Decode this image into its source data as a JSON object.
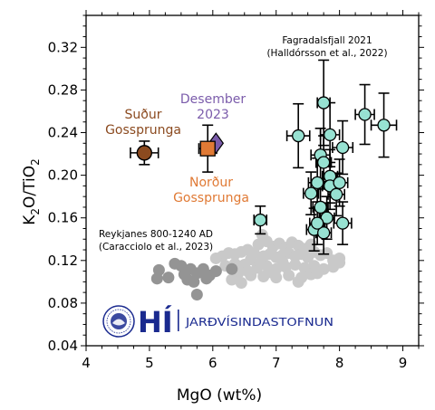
{
  "chart_data": {
    "type": "scatter",
    "xlabel": "MgO (wt%)",
    "ylabel_main": "K",
    "ylabel_sub": "2",
    "ylabel_rest": "O/TiO",
    "ylabel_sub2": "2",
    "xlim": [
      4,
      9.25
    ],
    "ylim": [
      0.04,
      0.35
    ],
    "xticks": [
      4,
      5,
      6,
      7,
      8,
      9
    ],
    "yticks": [
      0.04,
      0.08,
      0.12,
      0.16,
      0.2,
      0.24,
      0.28,
      0.32
    ],
    "grid": false,
    "colors": {
      "fagradalsfjall": "#97e2d2",
      "sudur": "#8b4a1f",
      "nordur": "#e07a35",
      "desember": "#7b5cab",
      "reykjanes_light": "#c9c9c9",
      "reykjanes_dark": "#949494",
      "logo": "#1a2a8f"
    },
    "annotations": {
      "fagradalsfjall_1": "Fagradalsfjall 2021",
      "fagradalsfjall_2": "(Halldórsson et al., 2022)",
      "reykjanes_1": "Reykjanes 800-1240 AD",
      "reykjanes_2": "(Caracciolo et al., 2023)",
      "sudur_1": "Suður",
      "sudur_2": "Gossprunga",
      "nordur_1": "Norður",
      "nordur_2": "Gossprunga",
      "desember_1": "Desember",
      "desember_2": "2023"
    },
    "series": [
      {
        "name": "Fagradalsfjall 2021",
        "points": [
          {
            "x": 6.75,
            "y": 0.158,
            "xerr": 0.1,
            "yerr": 0.013
          },
          {
            "x": 7.75,
            "y": 0.268,
            "xerr": 0.1,
            "yerr": 0.04
          },
          {
            "x": 7.35,
            "y": 0.237,
            "xerr": 0.18,
            "yerr": 0.03
          },
          {
            "x": 7.7,
            "y": 0.219,
            "xerr": 0.15,
            "yerr": 0.025
          },
          {
            "x": 7.85,
            "y": 0.238,
            "xerr": 0.15,
            "yerr": 0.03
          },
          {
            "x": 8.05,
            "y": 0.226,
            "xerr": 0.16,
            "yerr": 0.025
          },
          {
            "x": 8.4,
            "y": 0.257,
            "xerr": 0.15,
            "yerr": 0.028
          },
          {
            "x": 8.7,
            "y": 0.247,
            "xerr": 0.2,
            "yerr": 0.03
          },
          {
            "x": 7.75,
            "y": 0.212,
            "xerr": 0.12,
            "yerr": 0.025
          },
          {
            "x": 7.85,
            "y": 0.199,
            "xerr": 0.12,
            "yerr": 0.025
          },
          {
            "x": 7.65,
            "y": 0.193,
            "xerr": 0.14,
            "yerr": 0.023
          },
          {
            "x": 7.85,
            "y": 0.19,
            "xerr": 0.12,
            "yerr": 0.022
          },
          {
            "x": 8.0,
            "y": 0.193,
            "xerr": 0.13,
            "yerr": 0.022
          },
          {
            "x": 7.55,
            "y": 0.183,
            "xerr": 0.12,
            "yerr": 0.02
          },
          {
            "x": 7.95,
            "y": 0.182,
            "xerr": 0.13,
            "yerr": 0.02
          },
          {
            "x": 7.7,
            "y": 0.17,
            "xerr": 0.12,
            "yerr": 0.02
          },
          {
            "x": 7.8,
            "y": 0.16,
            "xerr": 0.12,
            "yerr": 0.02
          },
          {
            "x": 8.05,
            "y": 0.155,
            "xerr": 0.14,
            "yerr": 0.02
          },
          {
            "x": 7.6,
            "y": 0.149,
            "xerr": 0.12,
            "yerr": 0.02
          },
          {
            "x": 7.75,
            "y": 0.146,
            "xerr": 0.12,
            "yerr": 0.02
          },
          {
            "x": 7.65,
            "y": 0.155,
            "xerr": 0.12,
            "yerr": 0.02
          }
        ]
      },
      {
        "name": "Suður Gossprunga",
        "points": [
          {
            "x": 4.92,
            "y": 0.221,
            "xerr": 0.22,
            "yerr": 0.011
          }
        ]
      },
      {
        "name": "Norður Gossprunga",
        "points": [
          {
            "x": 5.92,
            "y": 0.225,
            "xerr": 0.14,
            "yerr": 0.022
          }
        ]
      },
      {
        "name": "Desember 2023",
        "points": [
          {
            "x": 6.05,
            "y": 0.23,
            "xerr": 0.0,
            "yerr": 0.0
          }
        ]
      },
      {
        "name": "Reykjanes 800-1240 AD (light)",
        "points": [
          {
            "x": 6.78,
            "y": 0.144
          },
          {
            "x": 6.72,
            "y": 0.135
          },
          {
            "x": 6.85,
            "y": 0.138
          },
          {
            "x": 6.95,
            "y": 0.133
          },
          {
            "x": 7.05,
            "y": 0.136
          },
          {
            "x": 7.15,
            "y": 0.132
          },
          {
            "x": 7.25,
            "y": 0.137
          },
          {
            "x": 7.35,
            "y": 0.134
          },
          {
            "x": 7.45,
            "y": 0.131
          },
          {
            "x": 7.55,
            "y": 0.135
          },
          {
            "x": 6.55,
            "y": 0.13
          },
          {
            "x": 6.65,
            "y": 0.127
          },
          {
            "x": 6.45,
            "y": 0.128
          },
          {
            "x": 6.35,
            "y": 0.126
          },
          {
            "x": 6.25,
            "y": 0.127
          },
          {
            "x": 6.15,
            "y": 0.124
          },
          {
            "x": 6.05,
            "y": 0.122
          },
          {
            "x": 6.6,
            "y": 0.121
          },
          {
            "x": 6.8,
            "y": 0.124
          },
          {
            "x": 6.9,
            "y": 0.126
          },
          {
            "x": 7.0,
            "y": 0.123
          },
          {
            "x": 7.1,
            "y": 0.125
          },
          {
            "x": 7.2,
            "y": 0.127
          },
          {
            "x": 7.3,
            "y": 0.124
          },
          {
            "x": 7.4,
            "y": 0.126
          },
          {
            "x": 7.5,
            "y": 0.123
          },
          {
            "x": 7.6,
            "y": 0.128
          },
          {
            "x": 7.7,
            "y": 0.125
          },
          {
            "x": 7.8,
            "y": 0.127
          },
          {
            "x": 7.9,
            "y": 0.12
          },
          {
            "x": 8.0,
            "y": 0.118
          },
          {
            "x": 6.5,
            "y": 0.116
          },
          {
            "x": 6.7,
            "y": 0.113
          },
          {
            "x": 6.85,
            "y": 0.115
          },
          {
            "x": 7.0,
            "y": 0.112
          },
          {
            "x": 7.15,
            "y": 0.114
          },
          {
            "x": 7.3,
            "y": 0.116
          },
          {
            "x": 7.45,
            "y": 0.113
          },
          {
            "x": 7.6,
            "y": 0.115
          },
          {
            "x": 7.75,
            "y": 0.112
          },
          {
            "x": 7.9,
            "y": 0.114
          },
          {
            "x": 8.0,
            "y": 0.122
          },
          {
            "x": 6.2,
            "y": 0.115
          },
          {
            "x": 6.35,
            "y": 0.117
          },
          {
            "x": 6.4,
            "y": 0.108
          },
          {
            "x": 6.6,
            "y": 0.106
          },
          {
            "x": 6.8,
            "y": 0.105
          },
          {
            "x": 7.0,
            "y": 0.104
          },
          {
            "x": 7.2,
            "y": 0.106
          },
          {
            "x": 7.4,
            "y": 0.104
          },
          {
            "x": 7.55,
            "y": 0.107
          },
          {
            "x": 6.3,
            "y": 0.102
          },
          {
            "x": 6.45,
            "y": 0.099
          },
          {
            "x": 6.9,
            "y": 0.109
          },
          {
            "x": 7.65,
            "y": 0.108
          },
          {
            "x": 6.05,
            "y": 0.11
          },
          {
            "x": 7.35,
            "y": 0.1
          },
          {
            "x": 6.75,
            "y": 0.118
          },
          {
            "x": 7.1,
            "y": 0.119
          },
          {
            "x": 6.55,
            "y": 0.11
          }
        ]
      },
      {
        "name": "Reykjanes 800-1240 AD (dark)",
        "points": [
          {
            "x": 5.15,
            "y": 0.111
          },
          {
            "x": 5.12,
            "y": 0.103
          },
          {
            "x": 5.4,
            "y": 0.117
          },
          {
            "x": 5.55,
            "y": 0.107
          },
          {
            "x": 5.5,
            "y": 0.115
          },
          {
            "x": 5.65,
            "y": 0.112
          },
          {
            "x": 5.75,
            "y": 0.108
          },
          {
            "x": 5.85,
            "y": 0.112
          },
          {
            "x": 5.95,
            "y": 0.106
          },
          {
            "x": 6.05,
            "y": 0.11
          },
          {
            "x": 5.3,
            "y": 0.104
          },
          {
            "x": 5.6,
            "y": 0.102
          },
          {
            "x": 5.9,
            "y": 0.103
          },
          {
            "x": 5.7,
            "y": 0.1
          },
          {
            "x": 6.3,
            "y": 0.112
          },
          {
            "x": 5.75,
            "y": 0.088
          }
        ]
      }
    ]
  },
  "logo": {
    "mark": "HÍ",
    "name": "JARÐVÍSINDASTOFNUN"
  }
}
